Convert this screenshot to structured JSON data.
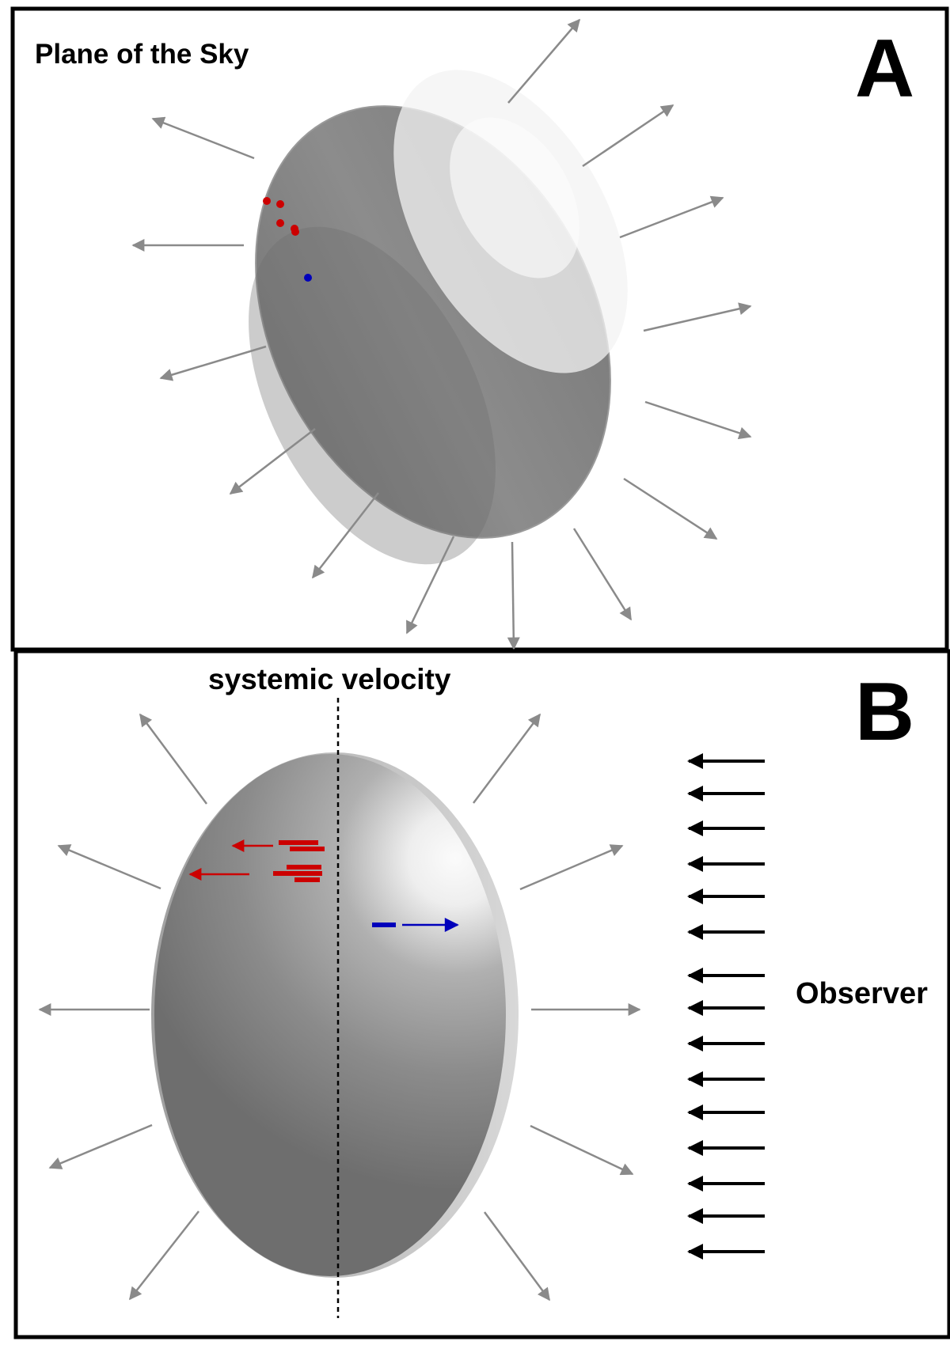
{
  "panel_a": {
    "letter": "A",
    "title": "Plane of the Sky"
  },
  "panel_b": {
    "letter": "B",
    "axis_label": "systemic velocity",
    "observer_label": "Observer"
  },
  "colors": {
    "frame": "#000000",
    "outflow_arrow": "#8a8a8a",
    "observer_arrow": "#000000",
    "redshifted": "#cc0000",
    "blueshifted": "#0000bb",
    "shell_dark": "#6e6e6e",
    "shell_light": "#f7f7f7"
  },
  "icons": {
    "outflow": "arrow-outward-icon",
    "observer": "arrow-left-icon"
  }
}
